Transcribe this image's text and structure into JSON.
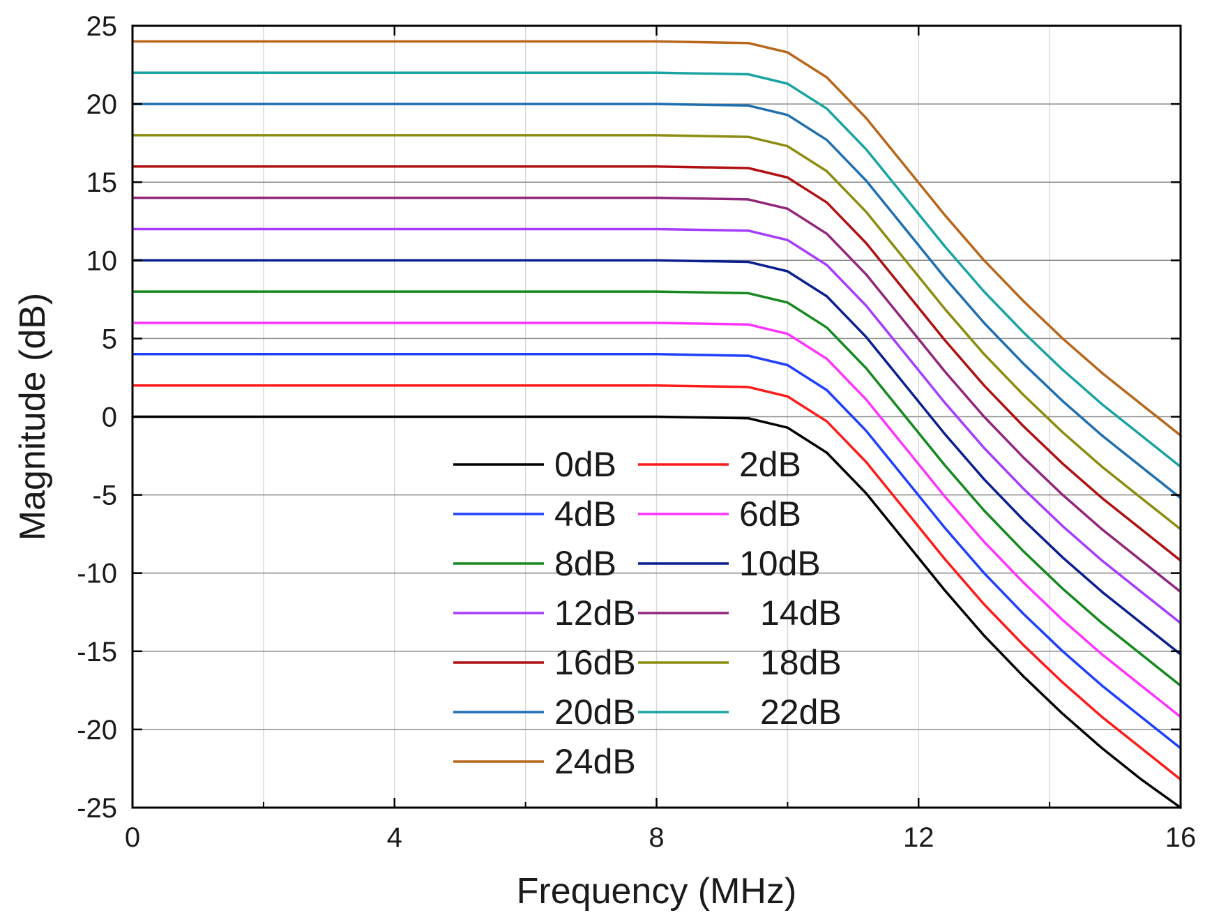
{
  "chart_data": {
    "type": "line",
    "title": "",
    "xlabel": "Frequency (MHz)",
    "ylabel": "Magnitude (dB)",
    "xlim": [
      0,
      16
    ],
    "ylim": [
      -25,
      25
    ],
    "x_ticks": [
      0,
      4,
      8,
      12,
      16
    ],
    "x_tick_labels": [
      "0",
      "4",
      "8",
      "12",
      "16"
    ],
    "y_ticks": [
      25,
      20,
      15,
      10,
      5,
      0,
      -5,
      -10,
      -15,
      -20,
      -25
    ],
    "y_tick_labels": [
      "25",
      "20",
      "15",
      "10",
      "5",
      "0",
      "-5",
      "-10",
      "-15",
      "-20",
      "-25"
    ],
    "grid": true,
    "legend_position": "center",
    "x": [
      0,
      2,
      4,
      6,
      8,
      9.4,
      10,
      10.6,
      11.2,
      11.8,
      12.4,
      13,
      13.6,
      14.2,
      14.8,
      15.4,
      16
    ],
    "base_response": [
      0,
      0,
      0,
      0,
      0,
      -0.1,
      -0.7,
      -2.3,
      -4.9,
      -8.0,
      -11.1,
      -14.0,
      -16.6,
      -19.0,
      -21.2,
      -23.2,
      -25.2
    ],
    "series": [
      {
        "name": "0dB",
        "gain": 0,
        "color": "#000000"
      },
      {
        "name": "2dB",
        "gain": 2,
        "color": "#ff1a1a"
      },
      {
        "name": "4dB",
        "gain": 4,
        "color": "#1f3fff"
      },
      {
        "name": "6dB",
        "gain": 6,
        "color": "#ff33ff"
      },
      {
        "name": "8dB",
        "gain": 8,
        "color": "#15891f"
      },
      {
        "name": "10dB",
        "gain": 10,
        "color": "#0a1f8f"
      },
      {
        "name": "12dB",
        "gain": 12,
        "color": "#a63cff"
      },
      {
        "name": "14dB",
        "gain": 14,
        "color": "#92267a"
      },
      {
        "name": "16dB",
        "gain": 16,
        "color": "#b01010"
      },
      {
        "name": "18dB",
        "gain": 18,
        "color": "#8c8c10"
      },
      {
        "name": "20dB",
        "gain": 20,
        "color": "#1f6fb0"
      },
      {
        "name": "22dB",
        "gain": 22,
        "color": "#1aa3a3"
      },
      {
        "name": "24dB",
        "gain": 24,
        "color": "#b8661a"
      }
    ]
  }
}
